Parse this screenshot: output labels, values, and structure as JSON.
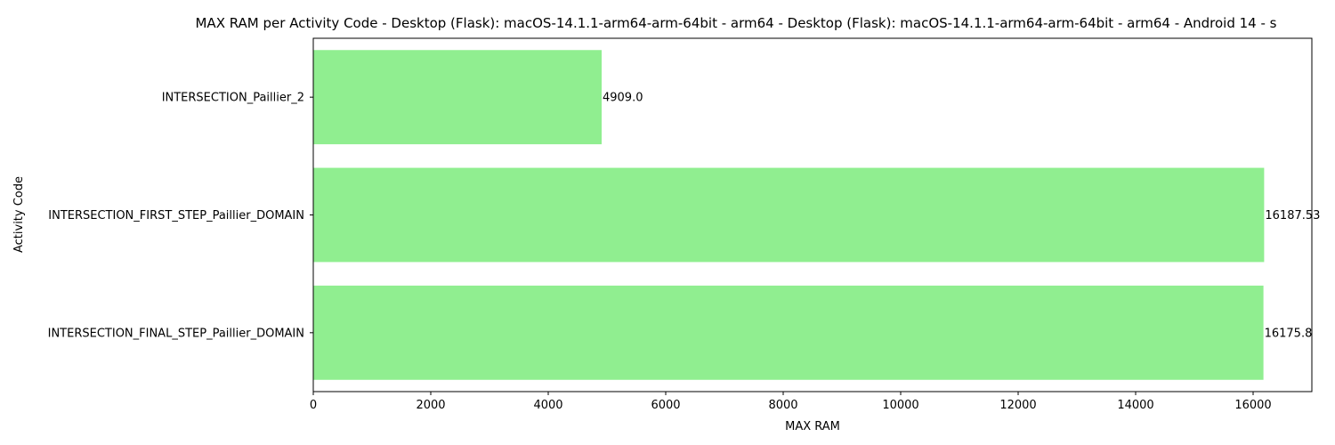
{
  "chart_data": {
    "type": "bar",
    "orientation": "horizontal",
    "title": "MAX RAM per Activity Code - Desktop (Flask): macOS-14.1.1-arm64-arm-64bit - arm64 - Desktop (Flask): macOS-14.1.1-arm64-arm-64bit - arm64 - Android 14 - s",
    "xlabel": "MAX RAM",
    "ylabel": "Activity Code",
    "categories": [
      "INTERSECTION_Paillier_2",
      "INTERSECTION_FIRST_STEP_Paillier_DOMAIN",
      "INTERSECTION_FINAL_STEP_Paillier_DOMAIN"
    ],
    "values": [
      4909.0,
      16187.53,
      16175.8
    ],
    "data_labels": [
      "4909.0",
      "16187.53",
      "16175.8"
    ],
    "xlim": [
      0,
      17000
    ],
    "xticks": [
      0,
      2000,
      4000,
      6000,
      8000,
      10000,
      12000,
      14000,
      16000
    ],
    "grid": false,
    "bar_color": "#90ee90"
  }
}
